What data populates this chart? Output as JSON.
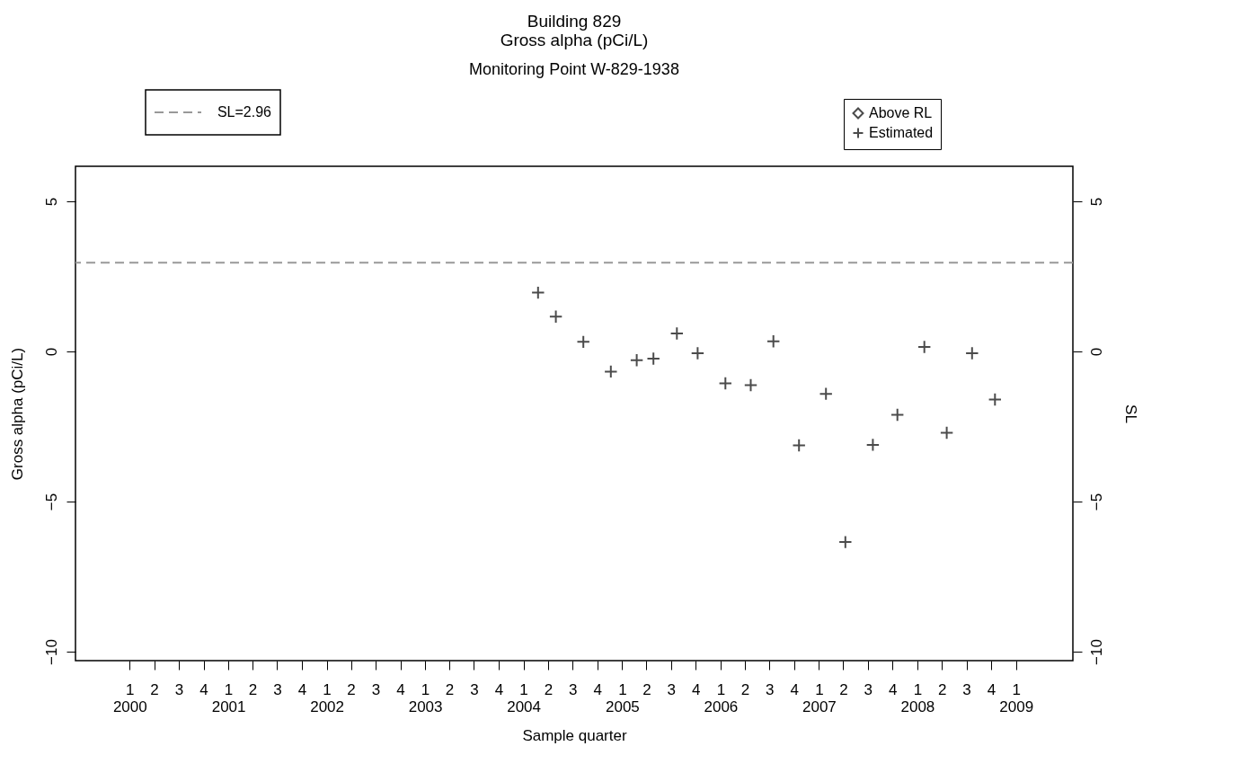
{
  "chart_data": {
    "type": "scatter",
    "title": "Building 829\nGross alpha (pCi/L)",
    "subtitle": "Monitoring Point W-829-1938",
    "xlabel": "Sample quarter",
    "ylabel": "Gross alpha (pCi/L)",
    "y2label": "SL",
    "x": [
      "2004-02-24",
      "2004-04-30",
      "2004-08-10",
      "2004-11-20",
      "2005-02-24",
      "2005-04-27",
      "2005-07-23",
      "2005-10-08",
      "2006-01-19",
      "2006-04-23",
      "2006-07-16",
      "2006-10-19",
      "2007-01-27",
      "2007-04-09",
      "2007-07-20",
      "2007-10-19",
      "2008-01-27",
      "2008-04-19",
      "2008-07-22",
      "2008-10-15"
    ],
    "series": [
      {
        "name": "Above RL",
        "color": "#000000",
        "marker": "diamond",
        "values": [
          null,
          null,
          null,
          null,
          null,
          null,
          null,
          null,
          null,
          null,
          null,
          null,
          null,
          null,
          null,
          null,
          null,
          null,
          null,
          null
        ]
      },
      {
        "name": "Estimated",
        "color": "#000000",
        "marker": "cross",
        "values": [
          1.96,
          1.16,
          0.32,
          -0.67,
          -0.29,
          -0.24,
          0.6,
          -0.06,
          -1.06,
          -1.12,
          0.34,
          -3.13,
          -1.41,
          -6.35,
          -3.11,
          -2.11,
          0.15,
          -2.71,
          -0.06,
          -1.6
        ]
      }
    ],
    "xlim": [
      "1999-06-14",
      "2009-07-31"
    ],
    "xticks": [
      {
        "value": "2000-01-01",
        "label": "1\n2000"
      },
      {
        "value": "2000-04-01",
        "label": "2"
      },
      {
        "value": "2000-07-01",
        "label": "3"
      },
      {
        "value": "2000-10-01",
        "label": "4"
      },
      {
        "value": "2001-01-01",
        "label": "1\n2001"
      },
      {
        "value": "2001-04-01",
        "label": "2"
      },
      {
        "value": "2001-07-01",
        "label": "3"
      },
      {
        "value": "2001-10-01",
        "label": "4"
      },
      {
        "value": "2002-01-01",
        "label": "1\n2002"
      },
      {
        "value": "2002-04-01",
        "label": "2"
      },
      {
        "value": "2002-07-01",
        "label": "3"
      },
      {
        "value": "2002-10-01",
        "label": "4"
      },
      {
        "value": "2003-01-01",
        "label": "1\n2003"
      },
      {
        "value": "2003-04-01",
        "label": "2"
      },
      {
        "value": "2003-07-01",
        "label": "3"
      },
      {
        "value": "2003-10-01",
        "label": "4"
      },
      {
        "value": "2004-01-01",
        "label": "1\n2004"
      },
      {
        "value": "2004-04-01",
        "label": "2"
      },
      {
        "value": "2004-07-01",
        "label": "3"
      },
      {
        "value": "2004-10-01",
        "label": "4"
      },
      {
        "value": "2005-01-01",
        "label": "1\n2005"
      },
      {
        "value": "2005-04-01",
        "label": "2"
      },
      {
        "value": "2005-07-01",
        "label": "3"
      },
      {
        "value": "2005-10-01",
        "label": "4"
      },
      {
        "value": "2006-01-01",
        "label": "1\n2006"
      },
      {
        "value": "2006-04-01",
        "label": "2"
      },
      {
        "value": "2006-07-01",
        "label": "3"
      },
      {
        "value": "2006-10-01",
        "label": "4"
      },
      {
        "value": "2007-01-01",
        "label": "1\n2007"
      },
      {
        "value": "2007-04-01",
        "label": "2"
      },
      {
        "value": "2007-07-01",
        "label": "3"
      },
      {
        "value": "2007-10-01",
        "label": "4"
      },
      {
        "value": "2008-01-01",
        "label": "1\n2008"
      },
      {
        "value": "2008-04-01",
        "label": "2"
      },
      {
        "value": "2008-07-01",
        "label": "3"
      },
      {
        "value": "2008-10-01",
        "label": "4"
      },
      {
        "value": "2009-01-01",
        "label": "1\n2009"
      }
    ],
    "ylim": [
      -10.3,
      6.17
    ],
    "yticks": [
      -10,
      -5,
      0,
      5
    ],
    "y2lim": [
      -10.3,
      6.17
    ],
    "y2ticks": [
      -10,
      -5,
      0,
      5
    ],
    "ref_lines": [
      {
        "axis": "y",
        "value": 2.96,
        "label": "SL=2.96",
        "color": "#999999",
        "line_style": "dashed"
      }
    ],
    "grid": false,
    "legend": "top right"
  }
}
